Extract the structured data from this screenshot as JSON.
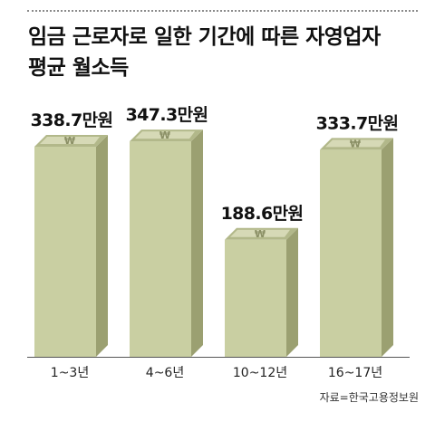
{
  "title_lines": [
    "임금 근로자로 일한 기간에 따른 자영업자",
    "평균 월소득"
  ],
  "source": "자료=한국고용정보원",
  "colors": {
    "front": "#c9cfa2",
    "top": "#b2b88a",
    "side": "#9ba071",
    "bill": "#e2e4c4",
    "won": "#8b9066",
    "axis": "#555555"
  },
  "chart_data": {
    "type": "bar",
    "title": "임금 근로자로 일한 기간에 따른 자영업자 평균 월소득",
    "categories": [
      "1~3년",
      "4~6년",
      "10~12년",
      "16~17년"
    ],
    "values": [
      338.7,
      347.3,
      188.6,
      333.7
    ],
    "data_labels": [
      "338.7만원",
      "347.3만원",
      "188.6만원",
      "333.7만원"
    ],
    "unit": "만원",
    "ylim": [
      0,
      400
    ],
    "grid": false,
    "legend": "none",
    "source": "자료=한국고용정보원"
  }
}
